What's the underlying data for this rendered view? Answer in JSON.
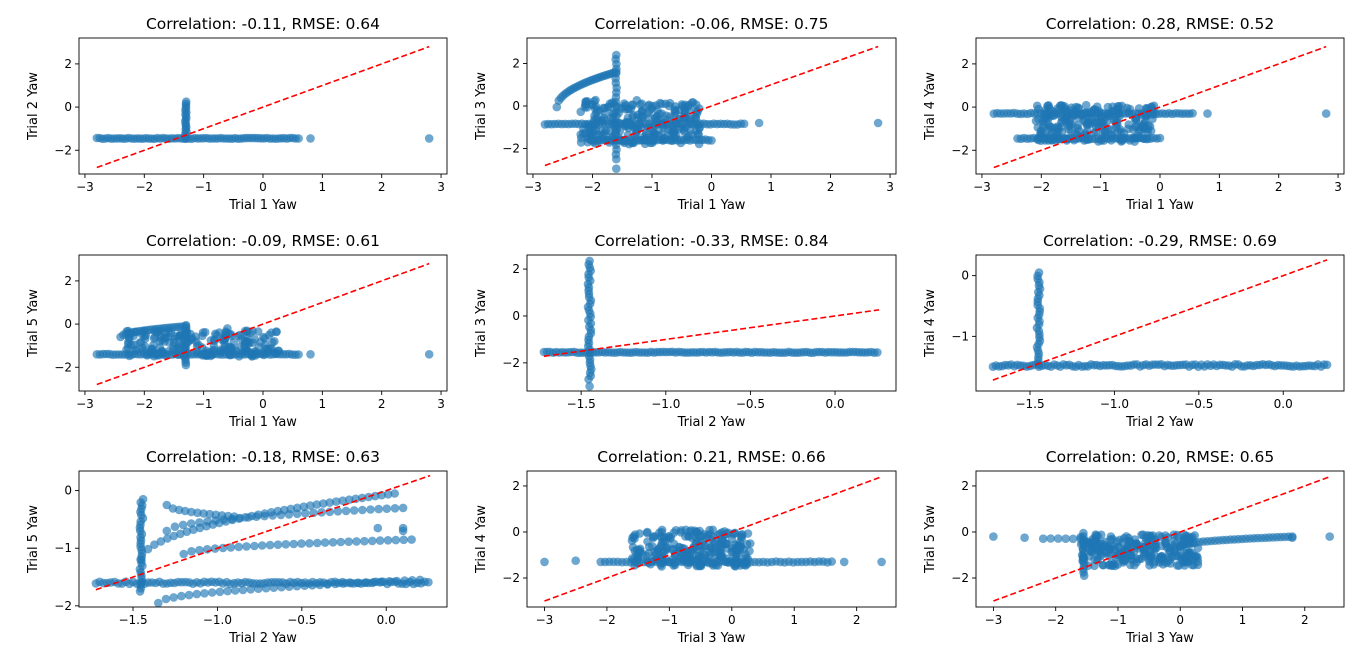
{
  "colors": {
    "points": "#1f77b4",
    "reference": "#ff0000",
    "axes": "#000000"
  },
  "chart_data": [
    {
      "type": "scatter",
      "title": "Correlation: -0.11, RMSE: 0.64",
      "xlabel": "Trial 1 Yaw",
      "ylabel": "Trial 2 Yaw",
      "xlim": [
        -3.1,
        3.1
      ],
      "ylim": [
        -3.1,
        3.2
      ],
      "xticks": [
        -3,
        -2,
        -1,
        0,
        1,
        2,
        3
      ],
      "yticks": [
        -2,
        0,
        2
      ],
      "reference_line": {
        "x": [
          -2.8,
          2.8
        ],
        "y": [
          -2.8,
          2.8
        ]
      },
      "clusters": [
        {
          "kind": "hline",
          "x": [
            -2.8,
            0.55
          ],
          "y": -1.45,
          "n": 70
        },
        {
          "kind": "vline",
          "x": -1.3,
          "y": [
            -1.45,
            0.25
          ],
          "n": 18
        }
      ],
      "points": [
        [
          0.8,
          -1.45
        ],
        [
          2.8,
          -1.45
        ],
        [
          0.6,
          -1.45
        ]
      ]
    },
    {
      "type": "scatter",
      "title": "Correlation: -0.06, RMSE: 0.75",
      "xlabel": "Trial 1 Yaw",
      "ylabel": "Trial 3 Yaw",
      "xlim": [
        -3.1,
        3.1
      ],
      "ylim": [
        -3.2,
        3.2
      ],
      "xticks": [
        -3,
        -2,
        -1,
        0,
        1,
        2,
        3
      ],
      "yticks": [
        -2,
        0,
        2
      ],
      "reference_line": {
        "x": [
          -2.8,
          2.8
        ],
        "y": [
          -2.8,
          2.8
        ]
      },
      "clusters": [
        {
          "kind": "hline",
          "x": [
            -2.8,
            0.55
          ],
          "y": -0.85,
          "n": 60
        },
        {
          "kind": "hline",
          "x": [
            -2.0,
            0.0
          ],
          "y": -1.6,
          "n": 40
        },
        {
          "kind": "curve",
          "x": [
            -2.6,
            -1.6
          ],
          "y": [
            -0.05,
            1.6
          ],
          "n": 30
        },
        {
          "kind": "blob",
          "x": [
            -2.2,
            -0.2
          ],
          "y": [
            -1.8,
            0.3
          ],
          "n": 260
        },
        {
          "kind": "vline",
          "x": -1.6,
          "y": [
            -2.5,
            2.2
          ],
          "n": 22
        }
      ],
      "points": [
        [
          -1.6,
          -2.95
        ],
        [
          -1.6,
          2.4
        ],
        [
          0.8,
          -0.8
        ],
        [
          2.8,
          -0.8
        ],
        [
          -0.5,
          -1.0
        ]
      ]
    },
    {
      "type": "scatter",
      "title": "Correlation: 0.28, RMSE: 0.52",
      "xlabel": "Trial 1 Yaw",
      "ylabel": "Trial 4 Yaw",
      "xlim": [
        -3.1,
        3.1
      ],
      "ylim": [
        -3.1,
        3.2
      ],
      "xticks": [
        -3,
        -2,
        -1,
        0,
        1,
        2,
        3
      ],
      "yticks": [
        -2,
        0,
        2
      ],
      "reference_line": {
        "x": [
          -2.8,
          2.8
        ],
        "y": [
          -2.8,
          2.8
        ]
      },
      "clusters": [
        {
          "kind": "hline",
          "x": [
            -2.8,
            0.55
          ],
          "y": -0.3,
          "n": 60
        },
        {
          "kind": "hline",
          "x": [
            -2.4,
            0.0
          ],
          "y": -1.45,
          "n": 45
        },
        {
          "kind": "blob",
          "x": [
            -2.1,
            -0.1
          ],
          "y": [
            -1.6,
            0.1
          ],
          "n": 240
        }
      ],
      "points": [
        [
          0.8,
          -0.3
        ],
        [
          2.8,
          -0.3
        ]
      ]
    },
    {
      "type": "scatter",
      "title": "Correlation: -0.09, RMSE: 0.61",
      "xlabel": "Trial 1 Yaw",
      "ylabel": "Trial 5 Yaw",
      "xlim": [
        -3.1,
        3.1
      ],
      "ylim": [
        -3.1,
        3.2
      ],
      "xticks": [
        -3,
        -2,
        -1,
        0,
        1,
        2,
        3
      ],
      "yticks": [
        -2,
        0,
        2
      ],
      "reference_line": {
        "x": [
          -2.8,
          2.8
        ],
        "y": [
          -2.8,
          2.8
        ]
      },
      "clusters": [
        {
          "kind": "hline",
          "x": [
            -2.8,
            0.6
          ],
          "y": -1.4,
          "n": 65
        },
        {
          "kind": "curve",
          "x": [
            -2.4,
            -1.3
          ],
          "y": [
            -0.6,
            -0.1
          ],
          "n": 25
        },
        {
          "kind": "blob",
          "x": [
            -2.3,
            0.3
          ],
          "y": [
            -1.5,
            -0.3
          ],
          "n": 200
        },
        {
          "kind": "vline",
          "x": -1.3,
          "y": [
            -1.9,
            -0.05
          ],
          "n": 16
        }
      ],
      "points": [
        [
          0.8,
          -1.4
        ],
        [
          2.8,
          -1.4
        ],
        [
          -0.6,
          -0.2
        ]
      ]
    },
    {
      "type": "scatter",
      "title": "Correlation: -0.33, RMSE: 0.84",
      "xlabel": "Trial 2 Yaw",
      "ylabel": "Trial 3 Yaw",
      "xlim": [
        -1.82,
        0.36
      ],
      "ylim": [
        -3.2,
        2.6
      ],
      "xticks": [
        -1.5,
        -1.0,
        -0.5,
        0.0
      ],
      "yticks": [
        -2,
        0,
        2
      ],
      "xtick_labels": [
        "−1.5",
        "−1.0",
        "−0.5",
        "0.0"
      ],
      "reference_line": {
        "x": [
          -1.72,
          0.26
        ],
        "y": [
          -1.72,
          0.26
        ]
      },
      "clusters": [
        {
          "kind": "hline",
          "x": [
            -1.72,
            0.25
          ],
          "y": -1.55,
          "n": 110
        },
        {
          "kind": "vline",
          "x": -1.45,
          "y": [
            -2.7,
            2.2
          ],
          "n": 36
        }
      ],
      "points": [
        [
          -1.45,
          -3.0
        ],
        [
          -1.45,
          2.35
        ]
      ]
    },
    {
      "type": "scatter",
      "title": "Correlation: -0.29, RMSE: 0.69",
      "xlabel": "Trial 2 Yaw",
      "ylabel": "Trial 4 Yaw",
      "xlim": [
        -1.82,
        0.36
      ],
      "ylim": [
        -1.9,
        0.34
      ],
      "xticks": [
        -1.5,
        -1.0,
        -0.5,
        0.0
      ],
      "yticks": [
        -1,
        0
      ],
      "xtick_labels": [
        "−1.5",
        "−1.0",
        "−0.5",
        "0.0"
      ],
      "reference_line": {
        "x": [
          -1.72,
          0.26
        ],
        "y": [
          -1.72,
          0.26
        ]
      },
      "clusters": [
        {
          "kind": "hline",
          "x": [
            -1.72,
            0.26
          ],
          "y": -1.48,
          "n": 110
        },
        {
          "kind": "vline",
          "x": -1.45,
          "y": [
            -1.5,
            0.05
          ],
          "n": 30
        }
      ],
      "points": []
    },
    {
      "type": "scatter",
      "title": "Correlation: -0.18, RMSE: 0.63",
      "xlabel": "Trial 2 Yaw",
      "ylabel": "Trial 5 Yaw",
      "xlim": [
        -1.82,
        0.36
      ],
      "ylim": [
        -2.02,
        0.34
      ],
      "xticks": [
        -1.5,
        -1.0,
        -0.5,
        0.0
      ],
      "yticks": [
        -2,
        -1,
        0
      ],
      "xtick_labels": [
        "−1.5",
        "−1.0",
        "−0.5",
        "0.0"
      ],
      "reference_line": {
        "x": [
          -1.72,
          0.26
        ],
        "y": [
          -1.72,
          0.26
        ]
      },
      "clusters": [
        {
          "kind": "hline",
          "x": [
            -1.72,
            0.25
          ],
          "y": -1.6,
          "n": 90
        },
        {
          "kind": "vline",
          "x": -1.45,
          "y": [
            -1.75,
            -0.15
          ],
          "n": 30
        },
        {
          "kind": "curve",
          "x": [
            -1.45,
            0.05
          ],
          "y": [
            -1.2,
            -0.05
          ],
          "n": 40
        },
        {
          "kind": "curve",
          "x": [
            -1.35,
            0.2
          ],
          "y": [
            -1.95,
            -1.55
          ],
          "n": 35
        },
        {
          "kind": "curve",
          "x": [
            -1.3,
            0.1
          ],
          "y": [
            -0.7,
            -0.3
          ],
          "n": 30
        },
        {
          "kind": "curve",
          "x": [
            -1.2,
            0.15
          ],
          "y": [
            -1.1,
            -0.85
          ],
          "n": 30
        },
        {
          "kind": "curve",
          "x": [
            -1.3,
            -0.9
          ],
          "y": [
            -0.25,
            -0.45
          ],
          "n": 12
        }
      ],
      "points": [
        [
          0.1,
          -0.7
        ],
        [
          0.1,
          -0.65
        ],
        [
          -0.05,
          -0.65
        ]
      ]
    },
    {
      "type": "scatter",
      "title": "Correlation: 0.21, RMSE: 0.66",
      "xlabel": "Trial 3 Yaw",
      "ylabel": "Trial 4 Yaw",
      "xlim": [
        -3.28,
        2.63
      ],
      "ylim": [
        -3.26,
        2.65
      ],
      "xticks": [
        -3,
        -2,
        -1,
        0,
        1,
        2
      ],
      "yticks": [
        -2,
        0,
        2
      ],
      "reference_line": {
        "x": [
          -3.0,
          2.4
        ],
        "y": [
          -3.0,
          2.4
        ]
      },
      "clusters": [
        {
          "kind": "hline",
          "x": [
            -2.1,
            1.6
          ],
          "y": -1.3,
          "n": 55
        },
        {
          "kind": "blob",
          "x": [
            -1.6,
            0.3
          ],
          "y": [
            -1.5,
            0.1
          ],
          "n": 260
        }
      ],
      "points": [
        [
          -3.0,
          -1.3
        ],
        [
          -2.5,
          -1.25
        ],
        [
          2.4,
          -1.3
        ],
        [
          1.8,
          -1.3
        ]
      ]
    },
    {
      "type": "scatter",
      "title": "Correlation: 0.20, RMSE: 0.65",
      "xlabel": "Trial 3 Yaw",
      "ylabel": "Trial 5 Yaw",
      "xlim": [
        -3.28,
        2.63
      ],
      "ylim": [
        -3.26,
        2.65
      ],
      "xticks": [
        -3,
        -2,
        -1,
        0,
        1,
        2
      ],
      "yticks": [
        -2,
        0,
        2
      ],
      "reference_line": {
        "x": [
          -3.0,
          2.4
        ],
        "y": [
          -3.0,
          2.4
        ]
      },
      "clusters": [
        {
          "kind": "curve",
          "x": [
            0.0,
            1.8
          ],
          "y": [
            -0.6,
            -0.2
          ],
          "n": 30
        },
        {
          "kind": "hline",
          "x": [
            -2.2,
            -1.6
          ],
          "y": -0.3,
          "n": 6
        },
        {
          "kind": "blob",
          "x": [
            -1.6,
            0.3
          ],
          "y": [
            -1.5,
            -0.1
          ],
          "n": 260
        },
        {
          "kind": "vline",
          "x": -1.55,
          "y": [
            -1.9,
            -0.05
          ],
          "n": 14
        }
      ],
      "points": [
        [
          -3.0,
          -0.2
        ],
        [
          -2.5,
          -0.25
        ],
        [
          2.4,
          -0.2
        ],
        [
          1.8,
          -0.25
        ]
      ]
    }
  ]
}
